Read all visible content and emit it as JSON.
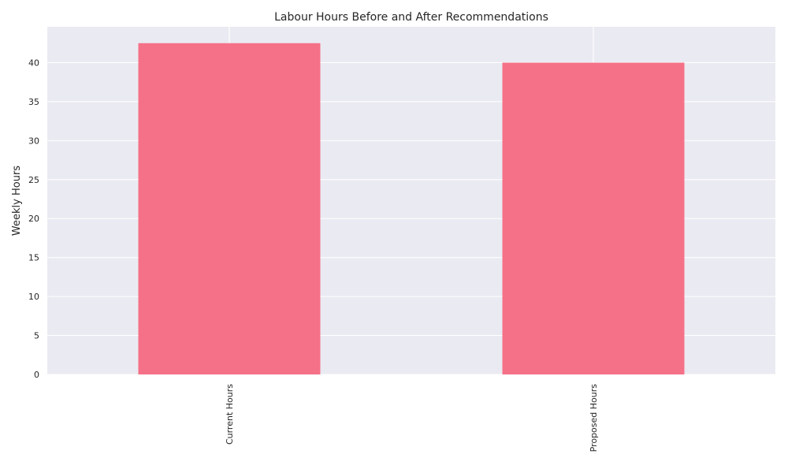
{
  "chart_data": {
    "type": "bar",
    "title": "Labour Hours Before and After Recommendations",
    "xlabel": "",
    "ylabel": "Weekly Hours",
    "categories": [
      "Current Hours",
      "Proposed Hours"
    ],
    "values": [
      42.5,
      40
    ],
    "ylim": [
      0,
      44.6
    ],
    "yticks": [
      0,
      5,
      10,
      15,
      20,
      25,
      30,
      35,
      40
    ],
    "grid": true,
    "legend": "none",
    "colors": {
      "bar": "#f57188",
      "plot_background": "#eaeaf2",
      "grid": "#ffffff",
      "text": "#262626"
    }
  }
}
